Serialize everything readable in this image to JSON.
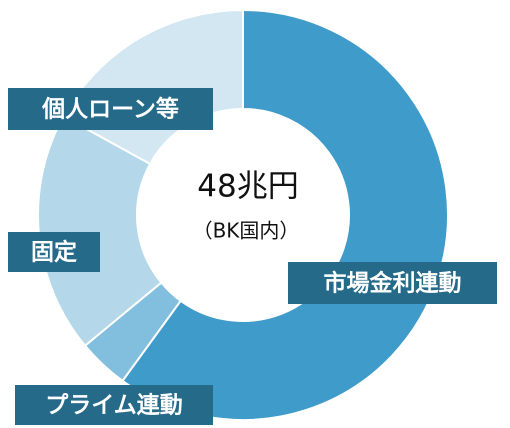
{
  "chart_data": {
    "type": "donut",
    "center_title": "48兆円",
    "center_subtitle": "（BK国内）",
    "categories": [
      "市場金利連動",
      "プライム連動",
      "固定",
      "個人ローン等"
    ],
    "values": [
      60,
      4,
      19,
      17
    ],
    "colors": [
      "#3f9bc9",
      "#82bedd",
      "#b4d7ea",
      "#d2e7f2"
    ]
  }
}
